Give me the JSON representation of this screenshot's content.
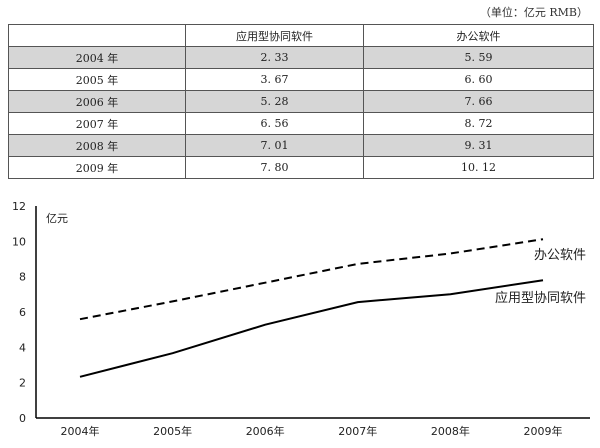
{
  "unit_note": "（单位：亿元 RMB）",
  "table": {
    "headers": [
      "",
      "应用型协同软件",
      "办公软件"
    ],
    "rows": [
      {
        "year": "2004 年",
        "collab": "2. 33",
        "office": "5. 59"
      },
      {
        "year": "2005 年",
        "collab": "3. 67",
        "office": "6. 60"
      },
      {
        "year": "2006 年",
        "collab": "5. 28",
        "office": "7. 66"
      },
      {
        "year": "2007 年",
        "collab": "6. 56",
        "office": "8. 72"
      },
      {
        "year": "2008 年",
        "collab": "7. 01",
        "office": "9. 31"
      },
      {
        "year": "2009 年",
        "collab": "7. 80",
        "office": "10. 12"
      }
    ]
  },
  "chart_data": {
    "type": "line",
    "categories": [
      "2004年",
      "2005年",
      "2006年",
      "2007年",
      "2008年",
      "2009年"
    ],
    "series": [
      {
        "name": "办公软件",
        "values": [
          5.59,
          6.6,
          7.66,
          8.72,
          9.31,
          10.12
        ],
        "style": "dashed",
        "color": "#000000"
      },
      {
        "name": "应用型协同软件",
        "values": [
          2.33,
          3.67,
          5.28,
          6.56,
          7.01,
          7.8
        ],
        "style": "solid",
        "color": "#000000"
      }
    ],
    "ylabel": "亿元",
    "ylim": [
      0,
      12
    ],
    "yticks": [
      0,
      2,
      4,
      6,
      8,
      10,
      12
    ],
    "grid": false
  }
}
